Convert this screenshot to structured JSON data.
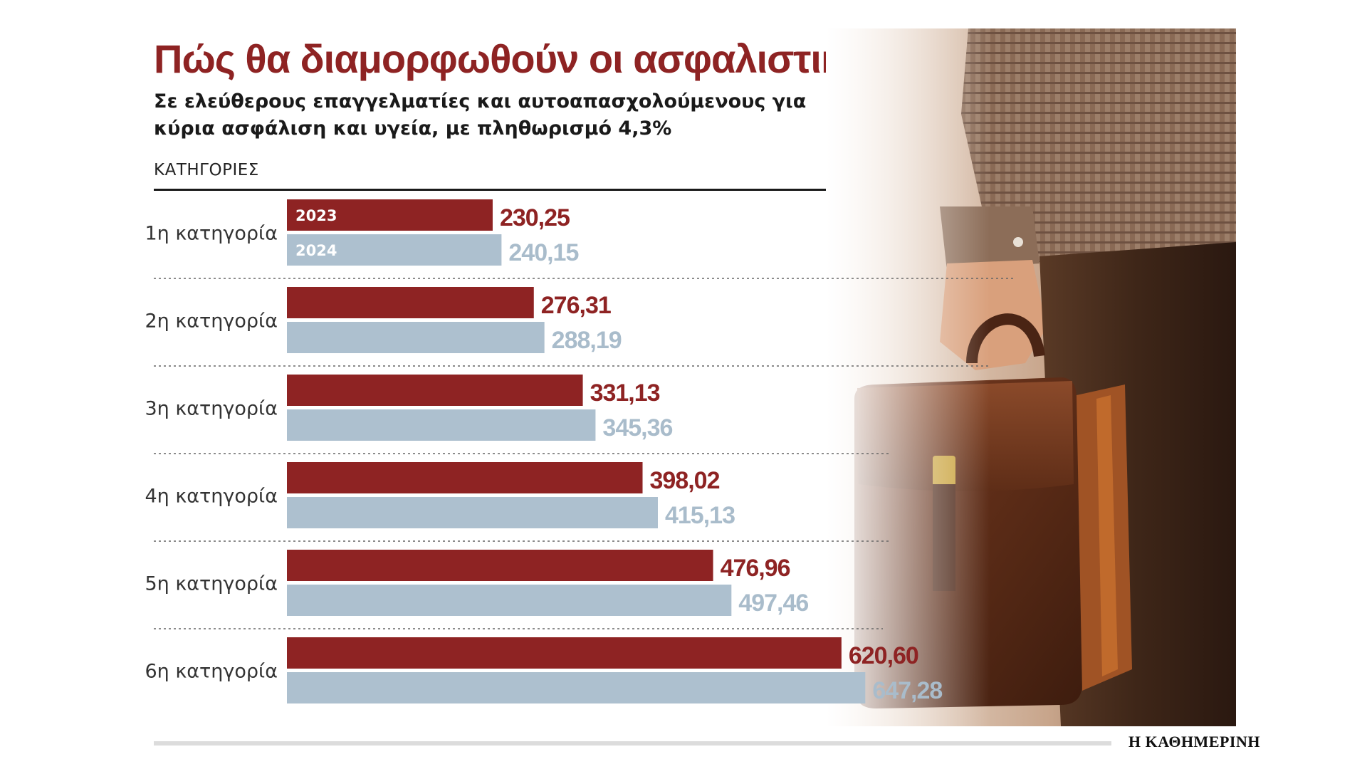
{
  "header": {
    "title": "Πώς θα διαμορφωθούν οι ασφαλιστικές εισφορές",
    "subtitle": "Σε ελεύθερους επαγγελματίες και αυτοαπασχολούμενους για κύρια ασφάλιση και υγεία, με πληθωρισμό 4,3%",
    "categories_header": "ΚΑΤΗΓΟΡΙΕΣ"
  },
  "source": "Η ΚΑΘΗΜΕΡΙΝΗ",
  "colors": {
    "series_2023": "#8e2323",
    "series_2024": "#adc0cf",
    "label_2023": "#8e2323",
    "label_2024": "#a9bccb",
    "title": "#8e2323"
  },
  "illustration": "man-holding-brown-leather-briefcase",
  "chart_data": {
    "type": "bar",
    "orientation": "horizontal",
    "categories": [
      "1η κατηγορία",
      "2η κατηγορία",
      "3η κατηγορία",
      "4η κατηγορία",
      "5η κατηγορία",
      "6η κατηγορία"
    ],
    "series": [
      {
        "name": "2023",
        "values": [
          230.25,
          276.31,
          331.13,
          398.02,
          476.96,
          620.6
        ],
        "labels": [
          "230,25",
          "276,31",
          "331,13",
          "398,02",
          "476,96",
          "620,60"
        ]
      },
      {
        "name": "2024",
        "values": [
          240.15,
          288.19,
          345.36,
          415.13,
          497.46,
          647.28
        ],
        "labels": [
          "240,15",
          "288,19",
          "345,36",
          "415,13",
          "497,46",
          "647,28"
        ]
      }
    ],
    "legend": "inside first category bars",
    "grid": false,
    "title": "",
    "xlabel": "",
    "ylabel": "ΚΑΤΗΓΟΡΙΕΣ"
  }
}
